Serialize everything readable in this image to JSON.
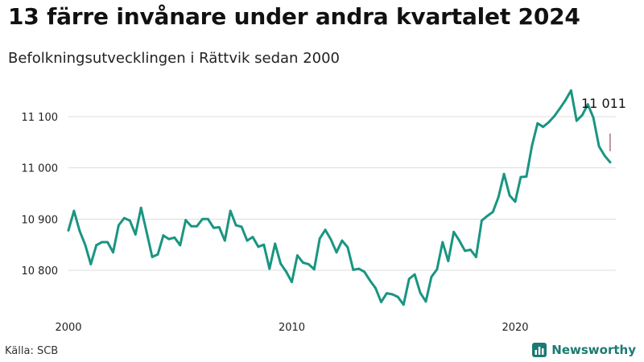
{
  "header": {
    "title": "13 färre invånare under andra kvartalet 2024",
    "subtitle": "Befolkningsutvecklingen i Rättvik sedan 2000"
  },
  "footer": {
    "source": "Källa: SCB",
    "brand": "Newsworthy"
  },
  "colors": {
    "line": "#1a9582",
    "grid": "#dddddd",
    "marker": "#7a2b55",
    "brand": "#1c7a72"
  },
  "chart_data": {
    "type": "line",
    "title": "13 färre invånare under andra kvartalet 2024",
    "subtitle": "Befolkningsutvecklingen i Rättvik sedan 2000",
    "xlabel": "",
    "ylabel": "",
    "ylim": [
      10730,
      11160
    ],
    "xlim": [
      2000,
      2024.5
    ],
    "y_ticks": [
      10800,
      10900,
      11000,
      11100
    ],
    "y_tick_labels": [
      "10 800",
      "10 900",
      "11 000",
      "11 100"
    ],
    "x_ticks": [
      2000,
      2010,
      2020
    ],
    "x_tick_labels": [
      "2000",
      "2010",
      "2020"
    ],
    "grid": true,
    "annotation": {
      "text": "11 011",
      "x": 2024.25,
      "value": 11011
    },
    "series": [
      {
        "name": "Befolkning",
        "x": [
          2000,
          2000.25,
          2000.5,
          2000.75,
          2001,
          2001.25,
          2001.5,
          2001.75,
          2002,
          2002.25,
          2002.5,
          2002.75,
          2003,
          2003.25,
          2003.5,
          2003.75,
          2004,
          2004.25,
          2004.5,
          2004.75,
          2005,
          2005.25,
          2005.5,
          2005.75,
          2006,
          2006.25,
          2006.5,
          2006.75,
          2007,
          2007.25,
          2007.5,
          2007.75,
          2008,
          2008.25,
          2008.5,
          2008.75,
          2009,
          2009.25,
          2009.5,
          2009.75,
          2010,
          2010.25,
          2010.5,
          2010.75,
          2011,
          2011.25,
          2011.5,
          2011.75,
          2012,
          2012.25,
          2012.5,
          2012.75,
          2013,
          2013.25,
          2013.5,
          2013.75,
          2014,
          2014.25,
          2014.5,
          2014.75,
          2015,
          2015.25,
          2015.5,
          2015.75,
          2016,
          2016.25,
          2016.5,
          2016.75,
          2017,
          2017.25,
          2017.5,
          2017.75,
          2018,
          2018.25,
          2018.5,
          2018.75,
          2019,
          2019.25,
          2019.5,
          2019.75,
          2020,
          2020.25,
          2020.5,
          2020.75,
          2021,
          2021.25,
          2021.5,
          2021.75,
          2022,
          2022.25,
          2022.5,
          2022.75,
          2023,
          2023.25,
          2023.5,
          2023.75,
          2024,
          2024.25
        ],
        "values": [
          10878,
          10916,
          10877,
          10850,
          10812,
          10849,
          10855,
          10855,
          10835,
          10888,
          10902,
          10897,
          10870,
          10922,
          10875,
          10826,
          10831,
          10868,
          10861,
          10864,
          10849,
          10898,
          10886,
          10886,
          10900,
          10900,
          10883,
          10884,
          10858,
          10916,
          10888,
          10885,
          10858,
          10865,
          10846,
          10850,
          10803,
          10852,
          10813,
          10797,
          10777,
          10829,
          10815,
          10812,
          10802,
          10862,
          10879,
          10860,
          10835,
          10858,
          10845,
          10801,
          10803,
          10797,
          10780,
          10765,
          10738,
          10755,
          10753,
          10748,
          10733,
          10783,
          10792,
          10756,
          10739,
          10787,
          10802,
          10855,
          10818,
          10875,
          10858,
          10838,
          10840,
          10826,
          10897,
          10906,
          10914,
          10943,
          10988,
          10946,
          10934,
          10982,
          10983,
          11043,
          11087,
          11080,
          11089,
          11101,
          11116,
          11132,
          11151,
          11092,
          11103,
          11124,
          11098,
          11042,
          11024,
          11011
        ]
      }
    ]
  }
}
